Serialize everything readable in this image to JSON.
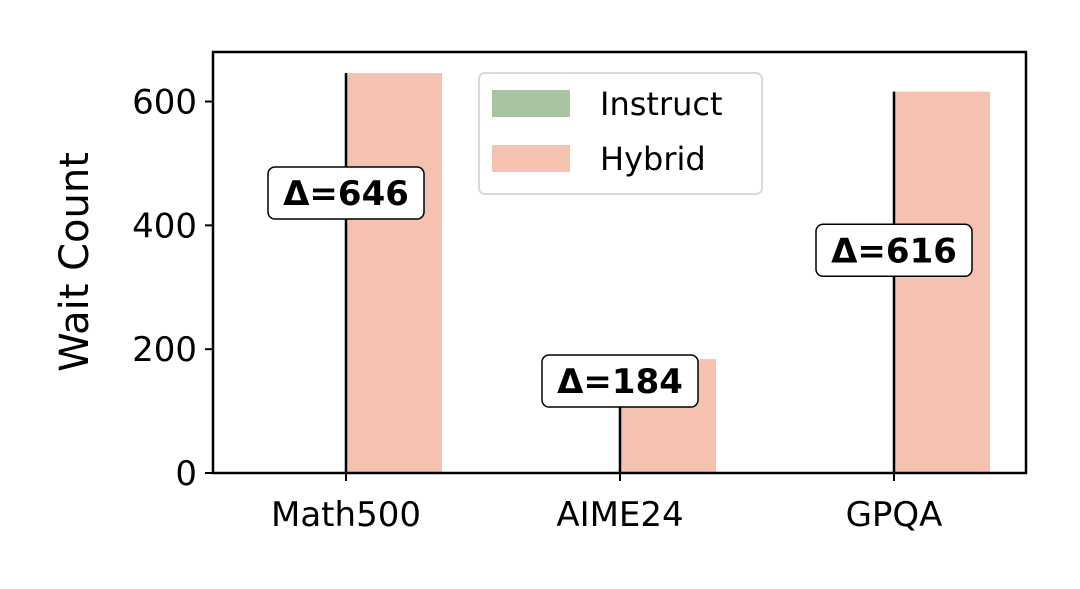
{
  "chart_data": {
    "type": "bar",
    "categories": [
      "Math500",
      "AIME24",
      "GPQA"
    ],
    "series": [
      {
        "name": "Instruct",
        "values": [
          0,
          0,
          0
        ],
        "color": "#a8c4a0"
      },
      {
        "name": "Hybrid",
        "values": [
          646,
          184,
          616
        ],
        "color": "#f5c2b0"
      }
    ],
    "annotations": [
      "Δ=646",
      "Δ=184",
      "Δ=616"
    ],
    "xlabel": "",
    "ylabel": "Wait Count",
    "ylim": [
      0,
      680
    ],
    "yticks": [
      0,
      200,
      400,
      600
    ],
    "legend_position": "top-center",
    "grid": false
  }
}
